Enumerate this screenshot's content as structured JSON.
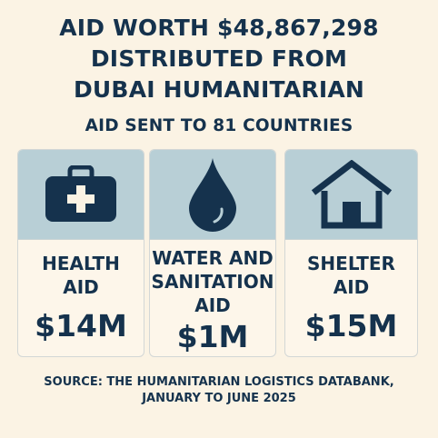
{
  "headline": {
    "line1": "AID WORTH $48,867,298",
    "line2": "DISTRIBUTED FROM",
    "line3": "DUBAI HUMANITARIAN"
  },
  "subtitle": "AID SENT TO 81 COUNTRIES",
  "cards": [
    {
      "label": "HEALTH\nAID",
      "value": "$14M",
      "icon": "medical-kit-icon"
    },
    {
      "label": "WATER AND\nSANITATION\nAID",
      "value": "$1M",
      "icon": "water-drop-icon"
    },
    {
      "label": "SHELTER\nAID",
      "value": "$15M",
      "icon": "house-icon"
    }
  ],
  "source": "SOURCE: THE HUMANITARIAN LOGISTICS DATABANK,\nJANUARY TO JUNE 2025",
  "colors": {
    "background": "#fbf3e4",
    "text": "#15324d",
    "icon_panel": "#b8cfd6",
    "card": "#fdf6ea"
  }
}
